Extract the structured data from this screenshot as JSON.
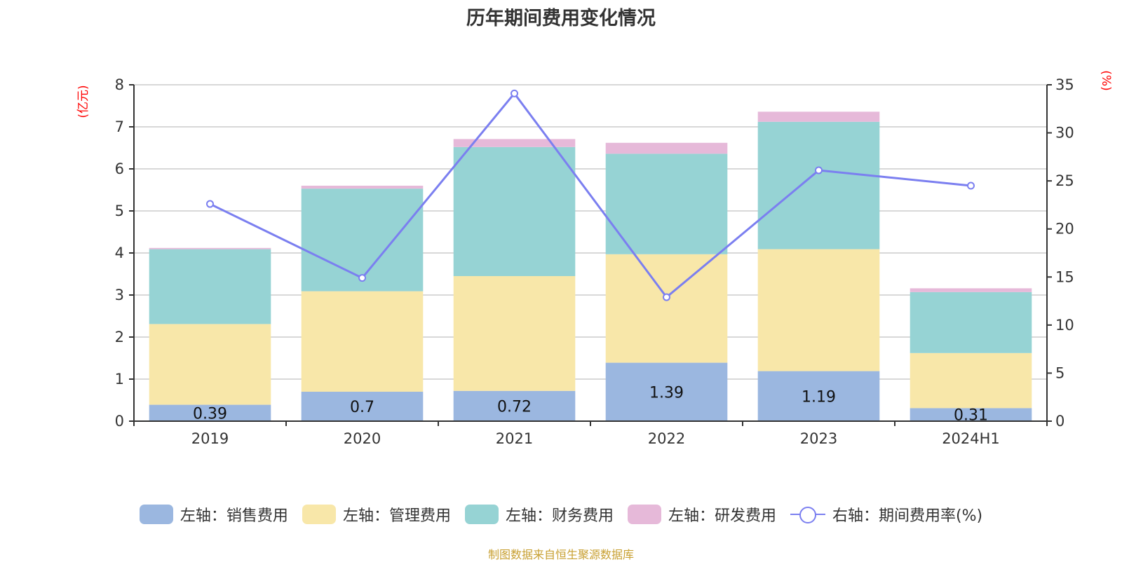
{
  "title": "历年期间费用变化情况",
  "footer": "制图数据来自恒生聚源数据库",
  "colors": {
    "sales": "#9bb7e0",
    "admin": "#f8e7a9",
    "finance": "#96d3d4",
    "rnd": "#e6b9d9",
    "rate": "#7b7ff0",
    "axis": "#333333",
    "grid": "#cccccc",
    "unit": "#ff0000"
  },
  "chart_data": {
    "type": "bar",
    "stacked": true,
    "title": "历年期间费用变化情况",
    "categories": [
      "2019",
      "2020",
      "2021",
      "2022",
      "2023",
      "2024H1"
    ],
    "left_axis": {
      "unit_label": "(亿元)",
      "ylim": [
        0,
        8
      ],
      "ticks": [
        "0",
        "1",
        "2",
        "3",
        "4",
        "5",
        "6",
        "7",
        "8"
      ]
    },
    "right_axis": {
      "unit_label": "(%)",
      "ylim": [
        0,
        35
      ],
      "ticks": [
        "0",
        "5",
        "10",
        "15",
        "20",
        "25",
        "30",
        "35"
      ]
    },
    "grid": true,
    "legend_position": "bottom",
    "series": [
      {
        "name": "左轴：销售费用",
        "key": "sales",
        "axis": "left",
        "type": "bar",
        "values": [
          0.39,
          0.7,
          0.72,
          1.39,
          1.19,
          0.31
        ],
        "labels": [
          "0.39",
          "0.7",
          "0.72",
          "1.39",
          "1.19",
          "0.31"
        ]
      },
      {
        "name": "左轴：管理费用",
        "key": "admin",
        "axis": "left",
        "type": "bar",
        "values": [
          1.92,
          2.39,
          2.73,
          2.58,
          2.9,
          1.31
        ]
      },
      {
        "name": "左轴：财务费用",
        "key": "finance",
        "axis": "left",
        "type": "bar",
        "values": [
          1.78,
          2.44,
          3.07,
          2.39,
          3.03,
          1.45
        ]
      },
      {
        "name": "左轴：研发费用",
        "key": "rnd",
        "axis": "left",
        "type": "bar",
        "values": [
          0.03,
          0.07,
          0.19,
          0.26,
          0.24,
          0.09
        ]
      },
      {
        "name": "右轴：期间费用率(%)",
        "key": "rate",
        "axis": "right",
        "type": "line",
        "values": [
          22.6,
          14.9,
          34.1,
          12.9,
          26.1,
          24.5
        ]
      }
    ]
  }
}
